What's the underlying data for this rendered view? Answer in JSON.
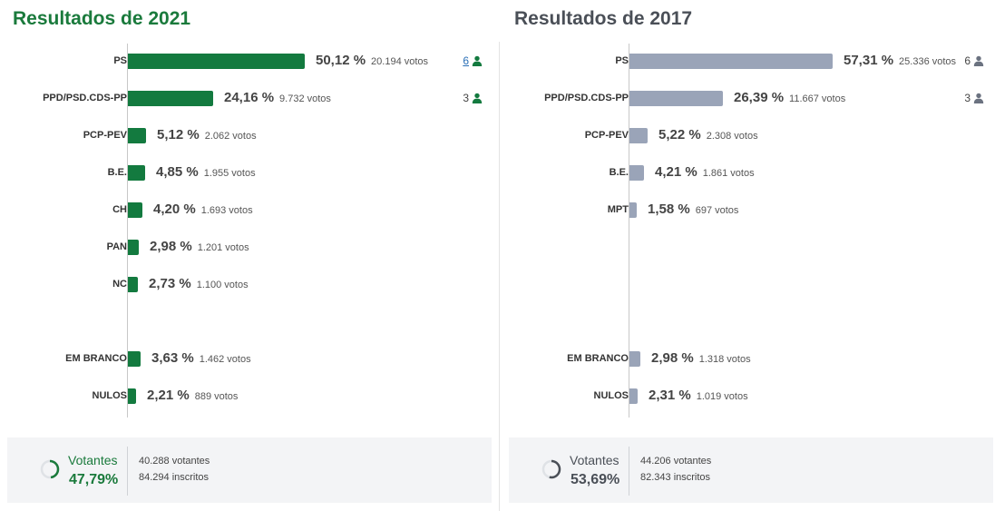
{
  "chart_data": [
    {
      "type": "bar",
      "title": "Resultados de 2021",
      "color": "#137a3f",
      "categories": [
        "PS",
        "PPD/PSD.CDS-PP",
        "PCP-PEV",
        "B.E.",
        "CH",
        "PAN",
        "NC",
        "EM BRANCO",
        "NULOS"
      ],
      "values": [
        50.12,
        24.16,
        5.12,
        4.85,
        4.2,
        2.98,
        2.73,
        3.63,
        2.21
      ],
      "pct_labels": [
        "50,12 %",
        "24,16 %",
        "5,12 %",
        "4,85 %",
        "4,20 %",
        "2,98 %",
        "2,73 %",
        "3,63 %",
        "2,21 %"
      ],
      "vote_labels": [
        "20.194 votos",
        "9.732 votos",
        "2.062 votos",
        "1.955 votos",
        "1.693 votos",
        "1.201 votos",
        "1.100 votos",
        "1.462 votos",
        "889 votos"
      ],
      "mandates": [
        "6",
        "3",
        "",
        "",
        "",
        "",
        "",
        "",
        ""
      ],
      "turnout": {
        "label": "Votantes",
        "pct": 47.79,
        "pct_label": "47,79%",
        "votantes": "40.288 votantes",
        "inscritos": "84.294 inscritos"
      }
    },
    {
      "type": "bar",
      "title": "Resultados de 2017",
      "color": "#9aa4b8",
      "categories": [
        "PS",
        "PPD/PSD.CDS-PP",
        "PCP-PEV",
        "B.E.",
        "MPT",
        "EM BRANCO",
        "NULOS"
      ],
      "values": [
        57.31,
        26.39,
        5.22,
        4.21,
        1.58,
        2.98,
        2.31
      ],
      "pct_labels": [
        "57,31 %",
        "26,39 %",
        "5,22 %",
        "4,21 %",
        "1,58 %",
        "2,98 %",
        "2,31 %"
      ],
      "vote_labels": [
        "25.336 votos",
        "11.667 votos",
        "2.308 votos",
        "1.861 votos",
        "697 votos",
        "1.318 votos",
        "1.019 votos"
      ],
      "mandates": [
        "6",
        "3",
        "",
        "",
        "",
        "",
        ""
      ],
      "turnout": {
        "label": "Votantes",
        "pct": 53.69,
        "pct_label": "53,69%",
        "votantes": "44.206 votantes",
        "inscritos": "82.343 inscritos"
      }
    }
  ],
  "colors": {
    "accent_2021": "#1a7a3c",
    "accent_2017": "#4a4f57",
    "mandate_link": "#2a6fb6",
    "person_icon_2021": "#137a3f",
    "person_icon_2017": "#6b7280"
  },
  "icons": {
    "mandates": "person-icon",
    "turnout": "turnout-ring-icon"
  }
}
